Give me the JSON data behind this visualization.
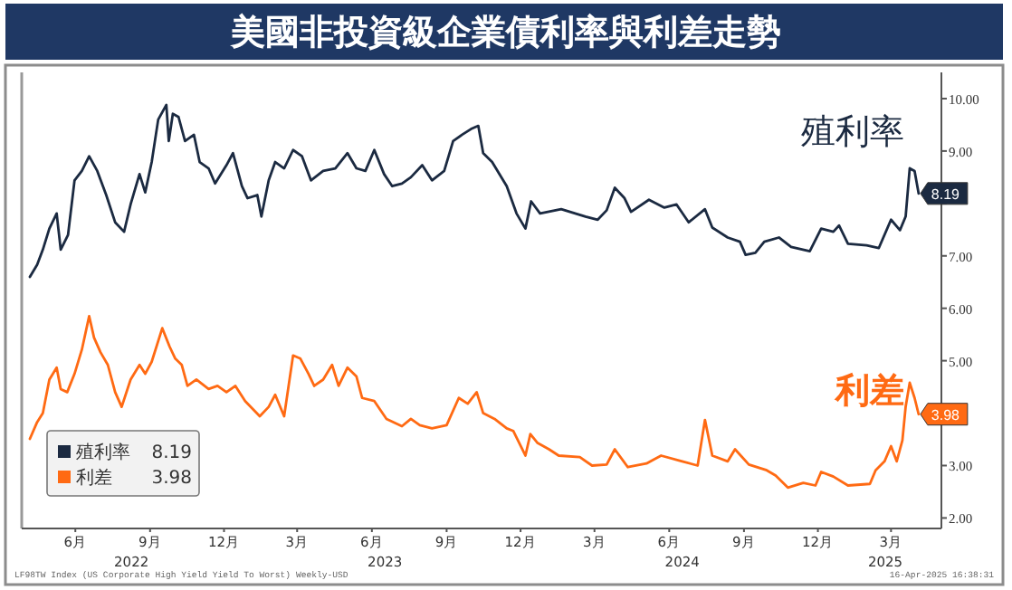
{
  "chart_data": {
    "type": "line",
    "title": "美國非投資級企業債利率與利差走勢",
    "xlim": [
      "2022-04-10",
      "2025-05-16"
    ],
    "xticks": [
      {
        "value": "2022-06-15",
        "label": "6月"
      },
      {
        "value": "2022-09-15",
        "label": "9月"
      },
      {
        "value": "2022-12-15",
        "label": "12月"
      },
      {
        "value": "2023-03-15",
        "label": "3月"
      },
      {
        "value": "2023-06-15",
        "label": "6月"
      },
      {
        "value": "2023-09-15",
        "label": "9月"
      },
      {
        "value": "2023-12-15",
        "label": "12月"
      },
      {
        "value": "2024-03-15",
        "label": "3月"
      },
      {
        "value": "2024-06-15",
        "label": "6月"
      },
      {
        "value": "2024-09-15",
        "label": "9月"
      },
      {
        "value": "2024-12-15",
        "label": "12月"
      },
      {
        "value": "2025-03-15",
        "label": "3月"
      }
    ],
    "x2lim": [
      "2022-04-10",
      "2025-05-16"
    ],
    "x2ticks": [
      {
        "value": "2022-08-23",
        "label": "2022"
      },
      {
        "value": "2023-07-01",
        "label": "2023"
      },
      {
        "value": "2024-07-01",
        "label": "2024"
      },
      {
        "value": "2025-03-08",
        "label": "2025"
      }
    ],
    "ylim": [
      1.8,
      10.5
    ],
    "yticks": [
      {
        "value": 2,
        "label": "2.00"
      },
      {
        "value": 3,
        "label": "3.00"
      },
      {
        "value": 4,
        "label": null
      },
      {
        "value": 5,
        "label": "5.00"
      },
      {
        "value": 6,
        "label": "6.00"
      },
      {
        "value": 7,
        "label": "7.00"
      },
      {
        "value": 8,
        "label": null
      },
      {
        "value": 9,
        "label": "9.00"
      },
      {
        "value": 10,
        "label": "10.00"
      }
    ],
    "legend": "bottom left",
    "annotations": [
      "LF98TW Index (US Corporate High Yield Yield To Worst) Weekly-USD",
      "16-Apr-2025 16:38:31"
    ],
    "series": [
      {
        "name": "殖利率",
        "color": "#1b2a41",
        "x": [
          "2022-04-20",
          "2022-04-29",
          "2022-05-06",
          "2022-05-14",
          "2022-05-23",
          "2022-05-28",
          "2022-06-06",
          "2022-06-14",
          "2022-06-23",
          "2022-07-02",
          "2022-07-12",
          "2022-07-23",
          "2022-08-03",
          "2022-08-14",
          "2022-08-22",
          "2022-09-02",
          "2022-09-09",
          "2022-09-17",
          "2022-09-25",
          "2022-10-05",
          "2022-10-08",
          "2022-10-13",
          "2022-10-20",
          "2022-10-28",
          "2022-11-08",
          "2022-11-15",
          "2022-11-26",
          "2022-12-04",
          "2022-12-18",
          "2022-12-26",
          "2023-01-06",
          "2023-01-13",
          "2023-01-25",
          "2023-01-30",
          "2023-02-08",
          "2023-02-16",
          "2023-02-27",
          "2023-03-10",
          "2023-03-21",
          "2023-04-01",
          "2023-04-16",
          "2023-05-01",
          "2023-05-16",
          "2023-05-27",
          "2023-06-07",
          "2023-06-18",
          "2023-06-30",
          "2023-07-10",
          "2023-07-22",
          "2023-08-02",
          "2023-08-16",
          "2023-08-28",
          "2023-09-12",
          "2023-09-23",
          "2023-10-04",
          "2023-10-15",
          "2023-10-24",
          "2023-10-30",
          "2023-11-10",
          "2023-11-28",
          "2023-12-10",
          "2023-12-21",
          "2023-12-28",
          "2024-01-08",
          "2024-02-03",
          "2024-03-04",
          "2024-03-19",
          "2024-03-30",
          "2024-04-09",
          "2024-04-21",
          "2024-04-29",
          "2024-05-21",
          "2024-06-09",
          "2024-06-24",
          "2024-07-09",
          "2024-07-29",
          "2024-08-07",
          "2024-08-26",
          "2024-09-10",
          "2024-09-17",
          "2024-09-29",
          "2024-10-10",
          "2024-10-28",
          "2024-11-12",
          "2024-12-05",
          "2024-12-19",
          "2025-01-03",
          "2025-01-10",
          "2025-01-21",
          "2025-02-13",
          "2025-02-28",
          "2025-03-15",
          "2025-03-26",
          "2025-04-02",
          "2025-04-07",
          "2025-04-13",
          "2025-04-18"
        ],
        "values": [
          6.6,
          6.83,
          7.12,
          7.52,
          7.81,
          7.12,
          7.4,
          8.44,
          8.62,
          8.9,
          8.62,
          8.16,
          7.64,
          7.46,
          7.98,
          8.56,
          8.21,
          8.79,
          9.6,
          9.88,
          9.19,
          9.71,
          9.65,
          9.19,
          9.31,
          8.79,
          8.67,
          8.38,
          8.73,
          8.96,
          8.33,
          8.1,
          8.16,
          7.75,
          8.44,
          8.79,
          8.67,
          9.02,
          8.9,
          8.44,
          8.62,
          8.67,
          8.96,
          8.67,
          8.62,
          9.02,
          8.56,
          8.33,
          8.38,
          8.5,
          8.73,
          8.44,
          8.62,
          9.19,
          9.31,
          9.42,
          9.48,
          8.96,
          8.79,
          8.33,
          7.81,
          7.52,
          8.04,
          7.81,
          7.89,
          7.75,
          7.69,
          7.87,
          8.3,
          8.1,
          7.84,
          8.07,
          7.92,
          7.98,
          7.64,
          7.89,
          7.54,
          7.35,
          7.27,
          7.02,
          7.06,
          7.27,
          7.35,
          7.17,
          7.09,
          7.52,
          7.46,
          7.58,
          7.23,
          7.2,
          7.15,
          7.69,
          7.49,
          7.75,
          8.67,
          8.62,
          8.19
        ],
        "value_labels": [
          null,
          null,
          null,
          null,
          null,
          null,
          null,
          null,
          null,
          null,
          null,
          null,
          null,
          null,
          null,
          null,
          null,
          null,
          null,
          null,
          null,
          null,
          null,
          null,
          null,
          null,
          null,
          null,
          null,
          null,
          null,
          null,
          null,
          null,
          null,
          null,
          null,
          null,
          null,
          null,
          null,
          null,
          null,
          null,
          null,
          null,
          null,
          null,
          null,
          null,
          null,
          null,
          null,
          null,
          null,
          null,
          null,
          null,
          null,
          null,
          null,
          null,
          null,
          null,
          null,
          null,
          null,
          null,
          null,
          null,
          null,
          null,
          null,
          null,
          null,
          null,
          null,
          null,
          null,
          null,
          null,
          null,
          null,
          null,
          null,
          null,
          null,
          null,
          null,
          null,
          null,
          null,
          null,
          null,
          null,
          null,
          "8.19"
        ]
      },
      {
        "name": "利差",
        "color": "#ff6a13",
        "x": [
          "2022-04-20",
          "2022-04-29",
          "2022-05-06",
          "2022-05-14",
          "2022-05-23",
          "2022-05-28",
          "2022-06-05",
          "2022-06-14",
          "2022-06-23",
          "2022-07-02",
          "2022-07-08",
          "2022-07-16",
          "2022-07-25",
          "2022-08-03",
          "2022-08-11",
          "2022-08-22",
          "2022-09-02",
          "2022-09-09",
          "2022-09-17",
          "2022-09-30",
          "2022-10-09",
          "2022-10-16",
          "2022-10-24",
          "2022-10-31",
          "2022-11-11",
          "2022-11-26",
          "2022-12-07",
          "2022-12-18",
          "2022-12-29",
          "2023-01-10",
          "2023-01-28",
          "2023-02-08",
          "2023-02-16",
          "2023-02-27",
          "2023-03-10",
          "2023-03-19",
          "2023-03-29",
          "2023-04-05",
          "2023-04-16",
          "2023-04-27",
          "2023-05-05",
          "2023-05-16",
          "2023-05-27",
          "2023-06-03",
          "2023-06-18",
          "2023-07-03",
          "2023-07-22",
          "2023-08-02",
          "2023-08-13",
          "2023-08-28",
          "2023-09-15",
          "2023-09-30",
          "2023-10-11",
          "2023-10-22",
          "2023-10-30",
          "2023-11-13",
          "2023-11-28",
          "2023-12-06",
          "2023-12-21",
          "2023-12-27",
          "2024-01-05",
          "2024-01-19",
          "2024-01-31",
          "2024-02-26",
          "2024-03-12",
          "2024-03-30",
          "2024-04-09",
          "2024-04-25",
          "2024-05-18",
          "2024-06-05",
          "2024-07-01",
          "2024-07-20",
          "2024-07-29",
          "2024-08-07",
          "2024-08-26",
          "2024-09-04",
          "2024-09-21",
          "2024-10-13",
          "2024-10-24",
          "2024-11-08",
          "2024-11-27",
          "2024-12-12",
          "2024-12-19",
          "2025-01-03",
          "2025-01-21",
          "2025-02-17",
          "2025-02-24",
          "2025-03-07",
          "2025-03-15",
          "2025-03-22",
          "2025-03-29",
          "2025-04-02",
          "2025-04-07",
          "2025-04-13",
          "2025-04-18"
        ],
        "values": [
          3.51,
          3.83,
          4.0,
          4.64,
          4.87,
          4.46,
          4.4,
          4.75,
          5.21,
          5.85,
          5.44,
          5.16,
          4.92,
          4.4,
          4.12,
          4.64,
          4.92,
          4.75,
          4.98,
          5.62,
          5.27,
          5.04,
          4.92,
          4.52,
          4.64,
          4.46,
          4.52,
          4.4,
          4.52,
          4.23,
          3.94,
          4.12,
          4.35,
          3.94,
          5.1,
          5.04,
          4.75,
          4.52,
          4.64,
          4.92,
          4.52,
          4.87,
          4.7,
          4.29,
          4.23,
          3.89,
          3.75,
          3.89,
          3.77,
          3.71,
          3.77,
          4.29,
          4.18,
          4.4,
          4.0,
          3.89,
          3.71,
          3.66,
          3.19,
          3.6,
          3.43,
          3.31,
          3.19,
          3.16,
          3.0,
          3.02,
          3.31,
          2.97,
          3.04,
          3.19,
          3.08,
          3.0,
          3.87,
          3.19,
          3.08,
          3.31,
          3.02,
          2.91,
          2.81,
          2.58,
          2.67,
          2.62,
          2.88,
          2.79,
          2.62,
          2.65,
          2.91,
          3.08,
          3.37,
          3.08,
          3.48,
          4.12,
          4.58,
          4.29,
          3.98
        ],
        "value_labels": [
          null,
          null,
          null,
          null,
          null,
          null,
          null,
          null,
          null,
          null,
          null,
          null,
          null,
          null,
          null,
          null,
          null,
          null,
          null,
          null,
          null,
          null,
          null,
          null,
          null,
          null,
          null,
          null,
          null,
          null,
          null,
          null,
          null,
          null,
          null,
          null,
          null,
          null,
          null,
          null,
          null,
          null,
          null,
          null,
          null,
          null,
          null,
          null,
          null,
          null,
          null,
          null,
          null,
          null,
          null,
          null,
          null,
          null,
          null,
          null,
          null,
          null,
          null,
          null,
          null,
          null,
          null,
          null,
          null,
          null,
          null,
          null,
          null,
          null,
          null,
          null,
          null,
          null,
          null,
          null,
          null,
          null,
          null,
          null,
          null,
          null,
          null,
          null,
          null,
          null,
          null,
          null,
          null,
          null,
          "3.98"
        ]
      }
    ]
  }
}
